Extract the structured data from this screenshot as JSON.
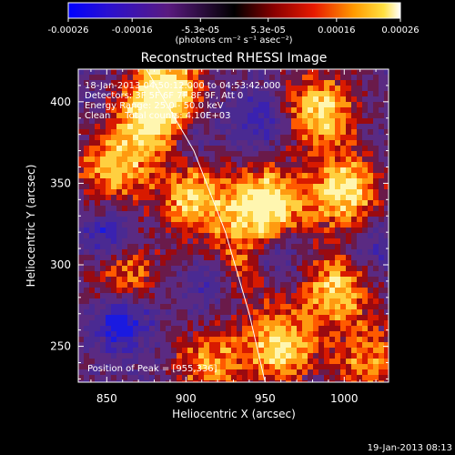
{
  "chart_data": {
    "type": "heatmap",
    "title": "Reconstructed RHESSI Image",
    "xlabel": "Heliocentric X (arcsec)",
    "ylabel": "Heliocentric Y (arcsec)",
    "xlim": [
      832,
      1028
    ],
    "ylim": [
      228,
      420
    ],
    "x_ticks": [
      850,
      900,
      950,
      1000
    ],
    "y_ticks": [
      250,
      300,
      350,
      400
    ],
    "x_tick_labels": [
      "850",
      "900",
      "950",
      "1000"
    ],
    "y_tick_labels": [
      "250",
      "300",
      "350",
      "400"
    ],
    "colorbar": {
      "range": [
        -0.00026,
        0.00026
      ],
      "tick_values": [
        -0.00026,
        -0.00016,
        -5.3e-05,
        5.3e-05,
        0.00016,
        0.00026
      ],
      "tick_labels": [
        "-0.00026",
        "-0.00016",
        "-5.3e-05",
        "5.3e-05",
        "0.00016",
        "0.00026"
      ],
      "units": "(photons cm⁻² s⁻¹ asec⁻²)"
    },
    "annotations": [
      "18-Jan-2013 04:50:12.000 to 04:53:42.000",
      "Detectors: 3F 5F 6F 7F 8F 9F, Att 0",
      "Energy Range: 25.0 - 50.0 keV",
      "Clean     Total counts: 4.10E+03"
    ],
    "peak_label": "Position of Peak = [955,336]",
    "peak_position": [
      955,
      336
    ],
    "limb_points": [
      [
        875,
        420
      ],
      [
        905,
        370
      ],
      [
        925,
        320
      ],
      [
        940,
        270
      ],
      [
        950,
        228
      ]
    ],
    "hot_spots": [
      {
        "x": 880,
        "y": 390,
        "intensity": 0.85
      },
      {
        "x": 855,
        "y": 360,
        "intensity": 0.7
      },
      {
        "x": 905,
        "y": 340,
        "intensity": 0.75
      },
      {
        "x": 950,
        "y": 336,
        "intensity": 1.0
      },
      {
        "x": 1000,
        "y": 345,
        "intensity": 0.85
      },
      {
        "x": 985,
        "y": 395,
        "intensity": 0.8
      },
      {
        "x": 860,
        "y": 295,
        "intensity": 0.6
      },
      {
        "x": 935,
        "y": 300,
        "intensity": 0.55
      },
      {
        "x": 995,
        "y": 285,
        "intensity": 0.75
      },
      {
        "x": 960,
        "y": 250,
        "intensity": 0.8
      },
      {
        "x": 915,
        "y": 240,
        "intensity": 0.6
      },
      {
        "x": 1015,
        "y": 240,
        "intensity": 0.55
      },
      {
        "x": 890,
        "y": 410,
        "intensity": 0.7
      }
    ],
    "cold_spots": [
      {
        "x": 860,
        "y": 265,
        "intensity": 0.9
      },
      {
        "x": 850,
        "y": 315,
        "intensity": 0.7
      },
      {
        "x": 955,
        "y": 305,
        "intensity": 0.6
      },
      {
        "x": 915,
        "y": 290,
        "intensity": 0.5
      },
      {
        "x": 945,
        "y": 390,
        "intensity": 0.55
      },
      {
        "x": 900,
        "y": 380,
        "intensity": 0.4
      },
      {
        "x": 1020,
        "y": 310,
        "intensity": 0.4
      }
    ]
  },
  "footer_timestamp": "19-Jan-2013 08:13"
}
